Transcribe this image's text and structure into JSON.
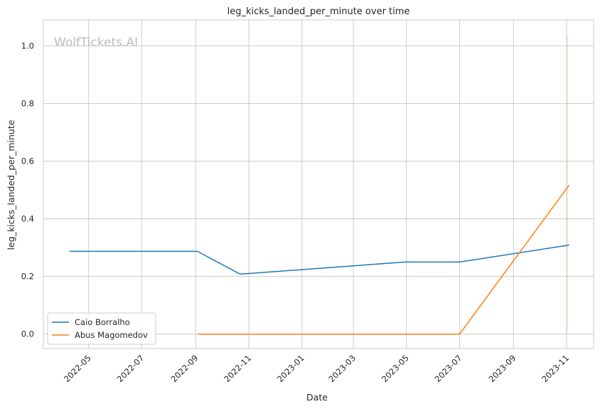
{
  "chart_data": {
    "type": "line",
    "title": "leg_kicks_landed_per_minute over time",
    "xlabel": "Date",
    "ylabel": "leg_kicks_landed_per_minute",
    "watermark": "WolfTickets.AI",
    "x_ticks": [
      "2022-05",
      "2022-07",
      "2022-09",
      "2022-11",
      "2023-01",
      "2023-03",
      "2023-05",
      "2023-07",
      "2023-09",
      "2023-11"
    ],
    "y_ticks": [
      "0.0",
      "0.2",
      "0.4",
      "0.6",
      "0.8",
      "1.0"
    ],
    "ylim": [
      -0.05,
      1.09
    ],
    "xlim": [
      "2022-03-10",
      "2023-12-02"
    ],
    "grid": true,
    "legend_position": "lower-left",
    "series": [
      {
        "name": "Caio Borralho",
        "color": "#1f77b4",
        "points": [
          {
            "x": "2022-04-09",
            "y": 0.287
          },
          {
            "x": "2022-09-03",
            "y": 0.287
          },
          {
            "x": "2022-10-22",
            "y": 0.208
          },
          {
            "x": "2023-04-29",
            "y": 0.25
          },
          {
            "x": "2023-07-01",
            "y": 0.25
          },
          {
            "x": "2023-11-04",
            "y": 0.309
          }
        ]
      },
      {
        "name": "Abus Magomedov",
        "color": "#ff7f0e",
        "points": [
          {
            "x": "2022-09-03",
            "y": 0.0
          },
          {
            "x": "2023-07-01",
            "y": 0.0
          },
          {
            "x": "2023-11-04",
            "y": 0.517
          }
        ]
      }
    ]
  }
}
